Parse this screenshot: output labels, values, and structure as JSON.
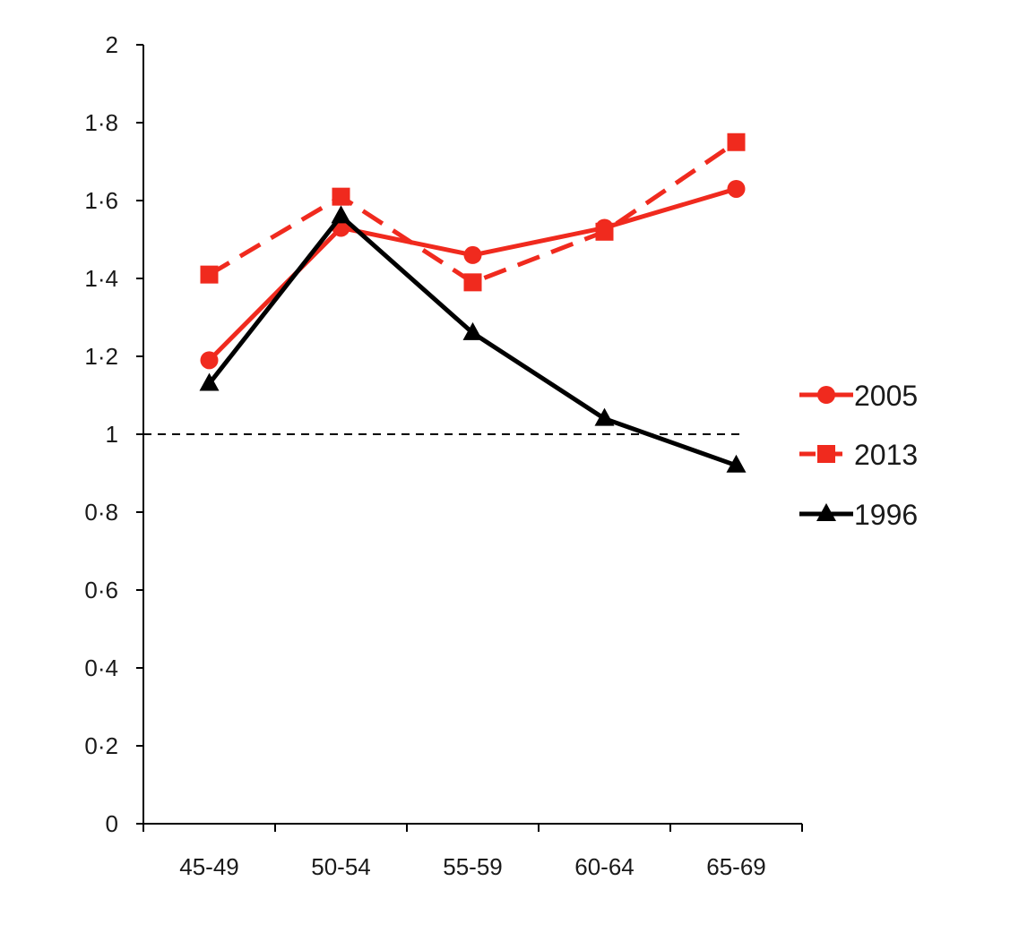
{
  "chart_data": {
    "type": "line",
    "title": "",
    "xlabel": "",
    "ylabel": "",
    "categories": [
      "45-49",
      "50-54",
      "55-59",
      "60-64",
      "65-69"
    ],
    "ylim": [
      0,
      2
    ],
    "yticks": [
      "0",
      "0·2",
      "0·4",
      "0·6",
      "0·8",
      "1",
      "1·2",
      "1·4",
      "1·6",
      "1·8",
      "2"
    ],
    "ytick_values": [
      0,
      0.2,
      0.4,
      0.6,
      0.8,
      1,
      1.2,
      1.4,
      1.6,
      1.8,
      2
    ],
    "grid": false,
    "reference_line": {
      "value": 1,
      "style": "dashed",
      "color": "#000000"
    },
    "legend_position": "right",
    "series": [
      {
        "name": "2005",
        "values": [
          1.19,
          1.53,
          1.46,
          1.53,
          1.63
        ],
        "color": "#f02a1e",
        "marker": "circle",
        "line_style": "solid"
      },
      {
        "name": "2013",
        "values": [
          1.41,
          1.61,
          1.39,
          1.52,
          1.75
        ],
        "color": "#f02a1e",
        "marker": "square",
        "line_style": "dashed"
      },
      {
        "name": "1996",
        "values": [
          1.13,
          1.56,
          1.26,
          1.04,
          0.92
        ],
        "color": "#000000",
        "marker": "triangle",
        "line_style": "solid"
      }
    ]
  }
}
